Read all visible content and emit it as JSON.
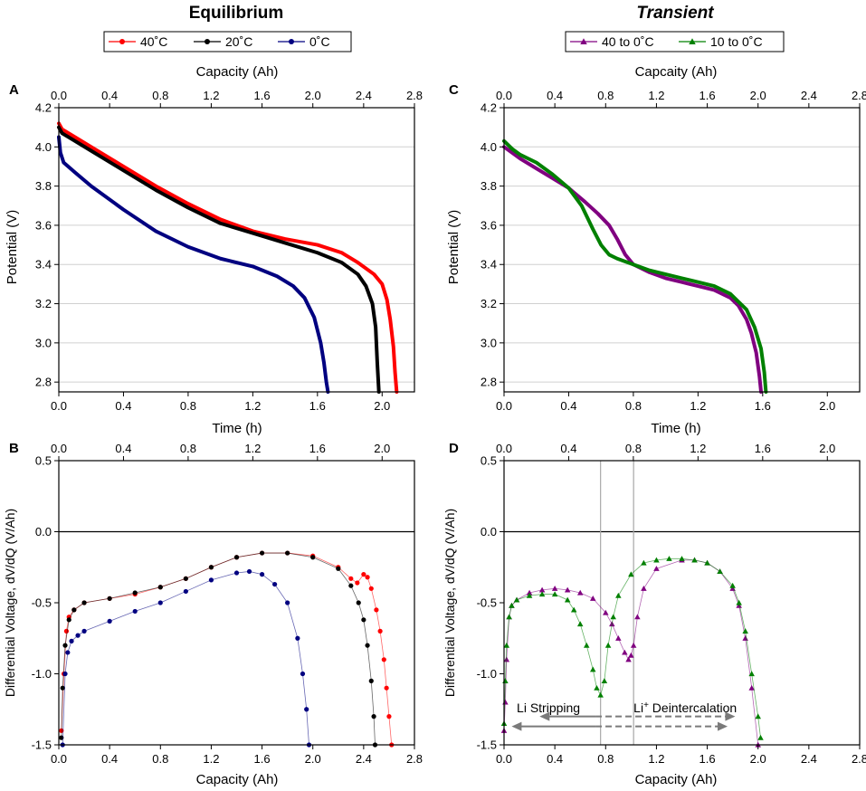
{
  "titles": {
    "left": "Equilibrium",
    "right": "Transient"
  },
  "legends": {
    "left": [
      {
        "label": "40˚C",
        "color": "#ff0000",
        "marker": "circle"
      },
      {
        "label": "20˚C",
        "color": "#000000",
        "marker": "circle"
      },
      {
        "label": "0˚C",
        "color": "#000080",
        "marker": "circle"
      }
    ],
    "right": [
      {
        "label": "40 to 0˚C",
        "color": "#800080",
        "marker": "triangle"
      },
      {
        "label": "10 to 0˚C",
        "color": "#008000",
        "marker": "triangle"
      }
    ]
  },
  "chart_data": [
    {
      "panel": "A",
      "type": "line",
      "title": "Equilibrium",
      "xlabel": "Time (h)",
      "ylabel": "Potential (V)",
      "top_xlabel": "Capacity (Ah)",
      "xlim": [
        0,
        2.2
      ],
      "ylim": [
        2.75,
        4.2
      ],
      "top_xlim": [
        0,
        2.8
      ],
      "xticks": [
        0.0,
        0.4,
        0.8,
        1.2,
        1.6,
        2.0
      ],
      "top_xticks": [
        0.0,
        0.4,
        0.8,
        1.2,
        1.6,
        2.0,
        2.4,
        2.8
      ],
      "yticks": [
        2.8,
        3.0,
        3.2,
        3.4,
        3.6,
        3.8,
        4.0,
        4.2
      ],
      "xtick_labels": [
        "0.0",
        "0.4",
        "0.8",
        "1.2",
        "1.6",
        "2.0"
      ],
      "top_xtick_labels": [
        "0.0",
        "0.4",
        "0.8",
        "1.2",
        "1.6",
        "2.0",
        "2.4",
        "2.8"
      ],
      "ytick_labels": [
        "2.8",
        "3.0",
        "3.2",
        "3.4",
        "3.6",
        "3.8",
        "4.0",
        "4.2"
      ],
      "grid": "horizontal",
      "series": [
        {
          "name": "40˚C",
          "color": "#ff0000",
          "x": [
            0,
            0.02,
            0.1,
            0.2,
            0.4,
            0.6,
            0.8,
            1.0,
            1.2,
            1.4,
            1.6,
            1.75,
            1.85,
            1.95,
            2.0,
            2.03,
            2.05,
            2.07,
            2.08,
            2.09
          ],
          "y": [
            4.12,
            4.09,
            4.05,
            4.0,
            3.9,
            3.8,
            3.71,
            3.63,
            3.57,
            3.53,
            3.5,
            3.46,
            3.41,
            3.35,
            3.3,
            3.22,
            3.12,
            2.98,
            2.85,
            2.75
          ]
        },
        {
          "name": "20˚C",
          "color": "#000000",
          "x": [
            0,
            0.02,
            0.1,
            0.2,
            0.4,
            0.6,
            0.8,
            1.0,
            1.2,
            1.4,
            1.6,
            1.75,
            1.85,
            1.9,
            1.94,
            1.96,
            1.97,
            1.98
          ],
          "y": [
            4.1,
            4.07,
            4.03,
            3.98,
            3.88,
            3.78,
            3.69,
            3.61,
            3.56,
            3.51,
            3.46,
            3.41,
            3.35,
            3.29,
            3.2,
            3.08,
            2.9,
            2.75
          ]
        },
        {
          "name": "0˚C",
          "color": "#000080",
          "x": [
            0,
            0.01,
            0.03,
            0.1,
            0.2,
            0.4,
            0.6,
            0.8,
            1.0,
            1.2,
            1.35,
            1.45,
            1.52,
            1.58,
            1.62,
            1.64,
            1.655,
            1.665
          ],
          "y": [
            4.05,
            3.97,
            3.92,
            3.87,
            3.8,
            3.68,
            3.57,
            3.49,
            3.43,
            3.39,
            3.34,
            3.29,
            3.23,
            3.13,
            3.0,
            2.9,
            2.8,
            2.75
          ]
        }
      ]
    },
    {
      "panel": "B",
      "type": "scatter",
      "xlabel": "Capacity (Ah)",
      "ylabel": "Differential Voltage, dV/dQ (V/Ah)",
      "top_xlabel": "",
      "xlim": [
        0,
        2.8
      ],
      "ylim": [
        -1.5,
        0.5
      ],
      "top_xlim": [
        0,
        2.2
      ],
      "xticks": [
        0.0,
        0.4,
        0.8,
        1.2,
        1.6,
        2.0,
        2.4,
        2.8
      ],
      "top_xticks": [
        0.0,
        0.4,
        0.8,
        1.2,
        1.6,
        2.0
      ],
      "yticks": [
        -1.5,
        -1.0,
        -0.5,
        0.0,
        0.5
      ],
      "xtick_labels": [
        "0.0",
        "0.4",
        "0.8",
        "1.2",
        "1.6",
        "2.0",
        "2.4",
        "2.8"
      ],
      "top_xtick_labels": [
        "0.0",
        "0.4",
        "0.8",
        "1.2",
        "1.6",
        "2.0"
      ],
      "ytick_labels": [
        "-1.5",
        "-1.0",
        "-0.5",
        "0.0",
        "0.5"
      ],
      "zero_line": 0,
      "series": [
        {
          "name": "40˚C",
          "color": "#ff0000",
          "x": [
            0.02,
            0.04,
            0.06,
            0.08,
            0.12,
            0.2,
            0.4,
            0.6,
            0.8,
            1.0,
            1.2,
            1.4,
            1.6,
            1.8,
            2.0,
            2.2,
            2.3,
            2.35,
            2.4,
            2.43,
            2.46,
            2.5,
            2.53,
            2.56,
            2.58,
            2.6,
            2.62
          ],
          "y": [
            -1.4,
            -1.0,
            -0.7,
            -0.6,
            -0.55,
            -0.5,
            -0.47,
            -0.44,
            -0.39,
            -0.33,
            -0.25,
            -0.18,
            -0.15,
            -0.15,
            -0.17,
            -0.25,
            -0.33,
            -0.36,
            -0.3,
            -0.32,
            -0.4,
            -0.55,
            -0.7,
            -0.9,
            -1.1,
            -1.3,
            -1.5
          ]
        },
        {
          "name": "20˚C",
          "color": "#000000",
          "x": [
            0.02,
            0.03,
            0.05,
            0.08,
            0.12,
            0.2,
            0.4,
            0.6,
            0.8,
            1.0,
            1.2,
            1.4,
            1.6,
            1.8,
            2.0,
            2.2,
            2.3,
            2.36,
            2.4,
            2.43,
            2.46,
            2.48,
            2.49
          ],
          "y": [
            -1.45,
            -1.1,
            -0.8,
            -0.62,
            -0.55,
            -0.5,
            -0.47,
            -0.43,
            -0.39,
            -0.33,
            -0.25,
            -0.18,
            -0.15,
            -0.15,
            -0.18,
            -0.26,
            -0.38,
            -0.5,
            -0.62,
            -0.8,
            -1.05,
            -1.3,
            -1.5
          ]
        },
        {
          "name": "0˚C",
          "color": "#000080",
          "x": [
            0.03,
            0.05,
            0.07,
            0.1,
            0.15,
            0.2,
            0.4,
            0.6,
            0.8,
            1.0,
            1.2,
            1.4,
            1.5,
            1.6,
            1.7,
            1.8,
            1.88,
            1.92,
            1.95,
            1.97
          ],
          "y": [
            -1.5,
            -1.0,
            -0.85,
            -0.77,
            -0.73,
            -0.7,
            -0.63,
            -0.56,
            -0.5,
            -0.42,
            -0.34,
            -0.29,
            -0.28,
            -0.3,
            -0.37,
            -0.5,
            -0.75,
            -1.0,
            -1.25,
            -1.5
          ]
        }
      ]
    },
    {
      "panel": "C",
      "type": "line",
      "title": "Transient",
      "xlabel": "Time (h)",
      "ylabel": "Potential (V)",
      "top_xlabel": "Capcaity (Ah)",
      "xlim": [
        0,
        2.2
      ],
      "ylim": [
        2.75,
        4.2
      ],
      "top_xlim": [
        0,
        2.8
      ],
      "xticks": [
        0.0,
        0.4,
        0.8,
        1.2,
        1.6,
        2.0
      ],
      "top_xticks": [
        0.0,
        0.4,
        0.8,
        1.2,
        1.6,
        2.0,
        2.4,
        2.8
      ],
      "yticks": [
        2.8,
        3.0,
        3.2,
        3.4,
        3.6,
        3.8,
        4.0,
        4.2
      ],
      "xtick_labels": [
        "0.0",
        "0.4",
        "0.8",
        "1.2",
        "1.6",
        "2.0"
      ],
      "top_xtick_labels": [
        "0.0",
        "0.4",
        "0.8",
        "1.2",
        "1.6",
        "2.0",
        "2.4",
        "2.8"
      ],
      "ytick_labels": [
        "2.8",
        "3.0",
        "3.2",
        "3.4",
        "3.6",
        "3.8",
        "4.0",
        "4.2"
      ],
      "grid": "horizontal",
      "series": [
        {
          "name": "40 to 0˚C",
          "color": "#800080",
          "x": [
            0,
            0.05,
            0.1,
            0.2,
            0.3,
            0.4,
            0.5,
            0.58,
            0.65,
            0.7,
            0.75,
            0.8,
            0.9,
            1.0,
            1.1,
            1.2,
            1.3,
            1.4,
            1.45,
            1.5,
            1.53,
            1.56,
            1.58,
            1.59
          ],
          "y": [
            4.0,
            3.97,
            3.94,
            3.89,
            3.84,
            3.79,
            3.72,
            3.66,
            3.6,
            3.53,
            3.45,
            3.4,
            3.36,
            3.33,
            3.31,
            3.29,
            3.27,
            3.23,
            3.19,
            3.12,
            3.05,
            2.95,
            2.83,
            2.75
          ]
        },
        {
          "name": "10 to 0˚C",
          "color": "#008000",
          "x": [
            0,
            0.05,
            0.1,
            0.2,
            0.3,
            0.4,
            0.48,
            0.55,
            0.6,
            0.65,
            0.7,
            0.8,
            0.9,
            1.0,
            1.1,
            1.2,
            1.3,
            1.4,
            1.5,
            1.55,
            1.59,
            1.61,
            1.62
          ],
          "y": [
            4.03,
            3.99,
            3.96,
            3.92,
            3.86,
            3.79,
            3.7,
            3.58,
            3.5,
            3.45,
            3.43,
            3.4,
            3.37,
            3.35,
            3.33,
            3.31,
            3.29,
            3.25,
            3.17,
            3.08,
            2.97,
            2.85,
            2.75
          ]
        }
      ]
    },
    {
      "panel": "D",
      "type": "scatter",
      "xlabel": "Capacity (Ah)",
      "ylabel": "Differential Voltage, dV/dQ (V/Ah)",
      "top_xlabel": "",
      "xlim": [
        0,
        2.8
      ],
      "ylim": [
        -1.5,
        0.5
      ],
      "top_xlim": [
        0,
        2.2
      ],
      "xticks": [
        0.0,
        0.4,
        0.8,
        1.2,
        1.6,
        2.0,
        2.4,
        2.8
      ],
      "top_xticks": [
        0.0,
        0.4,
        0.8,
        1.2,
        1.6,
        2.0
      ],
      "yticks": [
        -1.5,
        -1.0,
        -0.5,
        0.0,
        0.5
      ],
      "xtick_labels": [
        "0.0",
        "0.4",
        "0.8",
        "1.2",
        "1.6",
        "2.0",
        "2.4",
        "2.8"
      ],
      "top_xtick_labels": [
        "0.0",
        "0.4",
        "0.8",
        "1.2",
        "1.6",
        "2.0"
      ],
      "ytick_labels": [
        "-1.5",
        "-1.0",
        "-0.5",
        "0.0",
        "0.5"
      ],
      "zero_line": 0,
      "vlines": [
        0.76,
        1.02
      ],
      "annotations": [
        {
          "text": "Li Stripping",
          "x": 0.1,
          "y": -1.24
        },
        {
          "text": "Li",
          "sup": "+",
          "rest": " Deintercalation",
          "x": 1.02,
          "y": -1.24
        }
      ],
      "arrows": [
        {
          "style": "solid",
          "x1": 0.72,
          "x2": 0.28,
          "y": -1.3,
          "head": "left"
        },
        {
          "style": "dashed",
          "x1": 0.72,
          "x2": 1.82,
          "y": -1.3,
          "head": "right"
        },
        {
          "style": "solid",
          "x1": 0.72,
          "x2": 0.06,
          "y": -1.37,
          "head": "left"
        },
        {
          "style": "dashed",
          "x1": 0.72,
          "x2": 1.76,
          "y": -1.37,
          "head": "right"
        }
      ],
      "series": [
        {
          "name": "40 to 0˚C",
          "color": "#800080",
          "x": [
            0.0,
            0.01,
            0.02,
            0.04,
            0.06,
            0.1,
            0.2,
            0.3,
            0.4,
            0.5,
            0.6,
            0.7,
            0.8,
            0.85,
            0.9,
            0.95,
            0.98,
            1.0,
            1.02,
            1.05,
            1.1,
            1.2,
            1.4,
            1.5,
            1.6,
            1.7,
            1.8,
            1.85,
            1.9,
            1.95,
            2.0
          ],
          "y": [
            -1.4,
            -1.2,
            -0.9,
            -0.6,
            -0.52,
            -0.48,
            -0.43,
            -0.41,
            -0.4,
            -0.41,
            -0.43,
            -0.47,
            -0.57,
            -0.65,
            -0.75,
            -0.85,
            -0.9,
            -0.87,
            -0.8,
            -0.6,
            -0.4,
            -0.26,
            -0.2,
            -0.2,
            -0.22,
            -0.28,
            -0.4,
            -0.52,
            -0.75,
            -1.1,
            -1.5
          ]
        },
        {
          "name": "10 to 0˚C",
          "color": "#008000",
          "x": [
            0.0,
            0.01,
            0.02,
            0.04,
            0.06,
            0.1,
            0.2,
            0.3,
            0.4,
            0.5,
            0.55,
            0.6,
            0.65,
            0.7,
            0.73,
            0.76,
            0.79,
            0.82,
            0.86,
            0.9,
            1.0,
            1.1,
            1.2,
            1.3,
            1.4,
            1.5,
            1.6,
            1.7,
            1.8,
            1.85,
            1.9,
            1.95,
            2.0,
            2.02
          ],
          "y": [
            -1.35,
            -1.05,
            -0.8,
            -0.6,
            -0.52,
            -0.48,
            -0.45,
            -0.44,
            -0.44,
            -0.48,
            -0.55,
            -0.65,
            -0.8,
            -0.97,
            -1.1,
            -1.15,
            -1.05,
            -0.8,
            -0.6,
            -0.45,
            -0.3,
            -0.22,
            -0.2,
            -0.19,
            -0.19,
            -0.2,
            -0.22,
            -0.28,
            -0.38,
            -0.5,
            -0.7,
            -1.0,
            -1.3,
            -1.45
          ]
        }
      ]
    }
  ]
}
